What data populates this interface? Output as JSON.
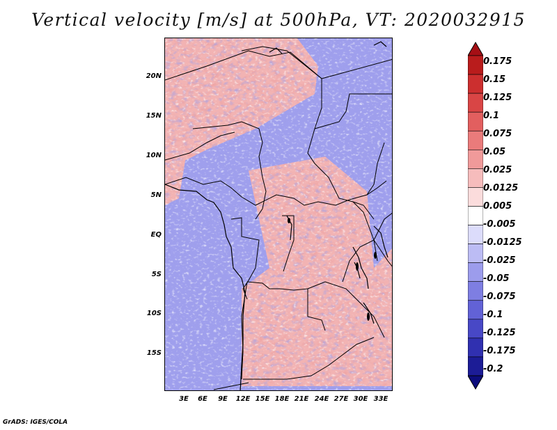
{
  "title": "Vertical velocity [m/s] at 500hPa, VT: 2020032915",
  "footer": "GrADS: IGES/COLA",
  "map": {
    "lat_labels": [
      "20N",
      "15N",
      "10N",
      "5N",
      "EQ",
      "5S",
      "10S",
      "15S"
    ],
    "lon_labels": [
      "3E",
      "6E",
      "9E",
      "12E",
      "15E",
      "18E",
      "21E",
      "24E",
      "27E",
      "30E",
      "33E"
    ]
  },
  "colorbar": {
    "labels": [
      "0.175",
      "0.15",
      "0.125",
      "0.1",
      "0.075",
      "0.05",
      "0.025",
      "0.0125",
      "0.005",
      "-0.005",
      "-0.0125",
      "-0.025",
      "-0.05",
      "-0.075",
      "-0.1",
      "-0.125",
      "-0.175",
      "-0.2"
    ],
    "colors": [
      "#a50f15",
      "#b91c1c",
      "#cc2f2f",
      "#d94545",
      "#e25f5f",
      "#ea7b7b",
      "#f09a9a",
      "#f6bcbc",
      "#fbdcdc",
      "#ffffff",
      "#dcdcfb",
      "#bcbcf4",
      "#9c9cec",
      "#7e7ee2",
      "#6262d6",
      "#4848c6",
      "#3030b0",
      "#1c1c96",
      "#0c0c7c"
    ]
  }
}
